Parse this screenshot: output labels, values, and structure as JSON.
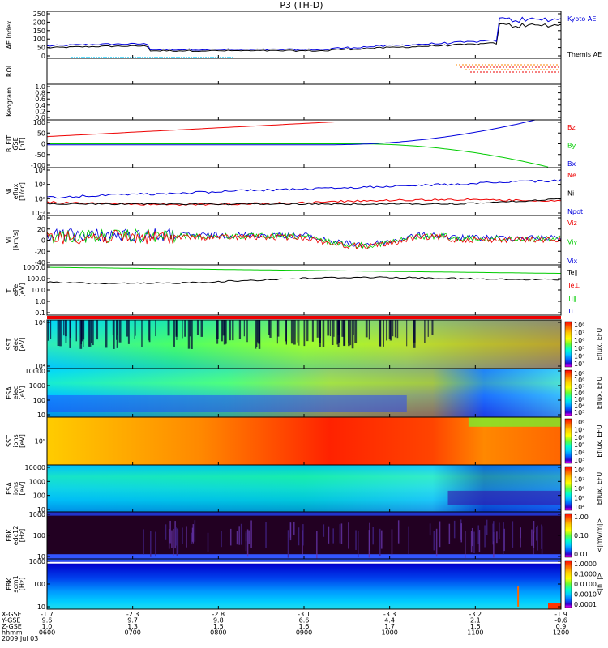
{
  "chart_data": {
    "type": "line",
    "title": "P3 (TH-D)",
    "colors": {
      "black": "#000000",
      "blue": "#0000dd",
      "red": "#ee0000",
      "green": "#00cc00",
      "cyan": "#00ccff",
      "orange": "#ff8800",
      "cbar_top": "#ff0000",
      "cbar_bottom": "#ff00ff"
    },
    "panels": [
      {
        "id": "ae",
        "ylabel": "AE Index",
        "yticks": [
          "250",
          "200",
          "150",
          "100",
          "50",
          "0"
        ],
        "legend": [
          {
            "text": "Kyoto AE",
            "color": "#0000dd"
          },
          {
            "text": "Themis AE",
            "color": "#000000"
          }
        ]
      },
      {
        "id": "roi",
        "ylabel": "ROI",
        "yticks": [],
        "legend": []
      },
      {
        "id": "keogram",
        "ylabel": "Keogram",
        "yticks": [
          "1.0",
          "0.8",
          "0.6",
          "0.4",
          "0.2",
          "0.0"
        ],
        "legend": []
      },
      {
        "id": "bfield",
        "ylabel": "B_FIT\nGSE\n[nT]",
        "yticks": [
          "100",
          "50",
          "0",
          "-50",
          "-100"
        ],
        "legend": [
          {
            "text": "Bz",
            "color": "#ee0000"
          },
          {
            "text": "By",
            "color": "#00cc00"
          },
          {
            "text": "Bx",
            "color": "#0000dd"
          }
        ]
      },
      {
        "id": "density",
        "ylabel": "Ni\neflux\n[1/cc]",
        "yticks": [
          "10⁴",
          "10²",
          "10⁰",
          "10⁻²"
        ],
        "legend": [
          {
            "text": "Ne",
            "color": "#ee0000"
          },
          {
            "text": "Ni",
            "color": "#000000"
          },
          {
            "text": "Npot",
            "color": "#0000dd"
          }
        ]
      },
      {
        "id": "velocity",
        "ylabel": "Vi\n[km/s]",
        "yticks": [
          "40",
          "20",
          "0",
          "-20",
          "-40"
        ],
        "legend": [
          {
            "text": "Viz",
            "color": "#ee0000"
          },
          {
            "text": "Viy",
            "color": "#00cc00"
          },
          {
            "text": "Vix",
            "color": "#0000dd"
          }
        ]
      },
      {
        "id": "temperature",
        "ylabel": "Ti\nePe\n[eV]",
        "yticks": [
          "1000.0",
          "100.0",
          "10.0",
          "1.0",
          "0.1"
        ],
        "legend": [
          {
            "text": "Te∥",
            "color": "#000000"
          },
          {
            "text": "Te⊥",
            "color": "#ee0000"
          },
          {
            "text": "Ti∥",
            "color": "#00cc00"
          },
          {
            "text": "Ti⊥",
            "color": "#0000dd"
          }
        ]
      },
      {
        "id": "sst_e",
        "ylabel": "SST\nelec\n[eV]",
        "yticks": [
          "10⁶",
          "10⁴"
        ],
        "cbar": {
          "ticks": [
            "10⁸",
            "10⁷",
            "10⁶",
            "10⁵",
            "10⁴",
            "10³"
          ],
          "label": "Eflux, EFU"
        }
      },
      {
        "id": "esa_e",
        "ylabel": "ESA\nelec\n[eV]",
        "yticks": [
          "10000",
          "1000",
          "100",
          "10"
        ],
        "cbar": {
          "ticks": [
            "10⁹",
            "10⁸",
            "10⁷",
            "10⁶",
            "10⁵",
            "10⁴",
            "10³"
          ],
          "label": "Eflux, EFU"
        }
      },
      {
        "id": "sst_i",
        "ylabel": "SST\nions\n[eV]",
        "yticks": [
          "10⁵"
        ],
        "cbar": {
          "ticks": [
            "10⁸",
            "10⁷",
            "10⁶",
            "10⁵",
            "10⁴",
            "10³"
          ],
          "label": "Eflux, EFU"
        }
      },
      {
        "id": "esa_i",
        "ylabel": "ESA\nions\n[eV]",
        "yticks": [
          "10000",
          "1000",
          "100",
          "10"
        ],
        "cbar": {
          "ticks": [
            "10⁸",
            "10⁷",
            "10⁶",
            "10⁵",
            "10⁴"
          ],
          "label": "Eflux, EFU"
        }
      },
      {
        "id": "fbk_e",
        "ylabel": "FBK\nedc12\n[Hz]",
        "yticks": [
          "1000",
          "100",
          "10"
        ],
        "cbar": {
          "ticks": [
            "1.00",
            "0.10",
            "0.01"
          ],
          "label": "<|mV/m|>"
        }
      },
      {
        "id": "fbk_b",
        "ylabel": "FBK\nscm1\n[Hz]",
        "yticks": [
          "1000",
          "100",
          "10"
        ],
        "cbar": {
          "ticks": [
            "1.0000",
            "0.1000",
            "0.0100",
            "0.0010",
            "0.0001"
          ],
          "label": "<|nT|>"
        }
      }
    ],
    "xaxis": {
      "row_labels": [
        "X-GSE",
        "Y-GSE",
        "Z-GSE",
        "hhmm",
        "2009 Jul 03"
      ],
      "ticks": [
        {
          "x": "-1.7",
          "y": "9.6",
          "z": "1.0",
          "t": "0600"
        },
        {
          "x": "-2.3",
          "y": "9.7",
          "z": "1.3",
          "t": "0700"
        },
        {
          "x": "-2.8",
          "y": "9.8",
          "z": "1.5",
          "t": "0800"
        },
        {
          "x": "-3.1",
          "y": "6.6",
          "z": "1.6",
          "t": "0900"
        },
        {
          "x": "-3.3",
          "y": "4.4",
          "z": "1.7",
          "t": "1000"
        },
        {
          "x": "-3.2",
          "y": "2.1",
          "z": "1.5",
          "t": "1100"
        },
        {
          "x": "-1.9",
          "y": "-0.6",
          "z": "0.9",
          "t": "1200"
        }
      ]
    }
  }
}
